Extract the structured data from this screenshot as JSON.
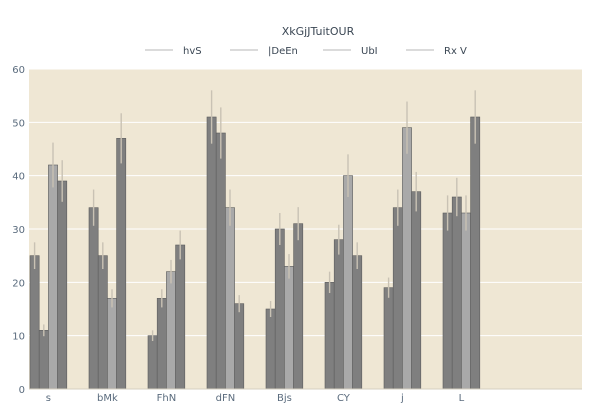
{
  "chart_data": {
    "type": "bar",
    "title": "XkGjJTuitOUR",
    "xlabel": "",
    "ylabel": "",
    "categories": [
      "s",
      "bMk",
      "FhN",
      "dFN",
      "Bjs",
      "CY",
      "j",
      "L"
    ],
    "ylim": [
      0,
      60
    ],
    "yticks": [
      0,
      10,
      20,
      30,
      40,
      50,
      60
    ],
    "grid": true,
    "legend_position": "top-center",
    "series": [
      {
        "name": "hvS",
        "color": "#7f7f7f",
        "values": [
          25,
          34,
          10,
          51,
          15,
          20,
          19,
          33
        ],
        "errors": [
          2.5,
          3.4,
          1.0,
          5.0,
          1.5,
          2.0,
          1.9,
          3.3
        ]
      },
      {
        "name": "|DeEn",
        "color": "#7f7f7f",
        "values": [
          11,
          25,
          17,
          48,
          30,
          28,
          34,
          36
        ],
        "errors": [
          1.1,
          2.5,
          1.7,
          4.8,
          3.0,
          2.8,
          3.4,
          3.6
        ]
      },
      {
        "name": "UbI",
        "color": "#a9a9a9",
        "values": [
          42,
          17,
          22,
          34,
          23,
          40,
          49,
          33
        ],
        "errors": [
          4.2,
          1.7,
          2.2,
          3.4,
          2.3,
          4.0,
          4.9,
          3.3
        ]
      },
      {
        "name": "Rx V",
        "color": "#7f7f7f",
        "values": [
          39,
          47,
          27,
          16,
          31,
          25,
          37,
          51
        ],
        "errors": [
          3.9,
          4.7,
          2.7,
          1.6,
          3.1,
          2.5,
          3.7,
          5.0
        ]
      }
    ],
    "colors": {
      "plot_background": "#efe7d4",
      "grid": "#ffffff",
      "axis_text": "#5a6b7d",
      "title_text": "#3b4754",
      "legend_line": "#cfcfcf",
      "error_bar": "#c9c2b4"
    }
  }
}
